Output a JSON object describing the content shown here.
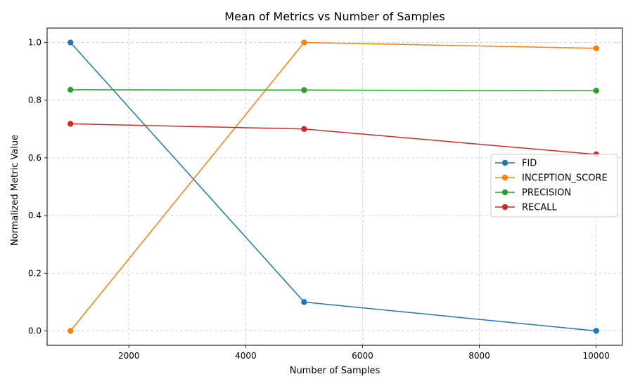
{
  "chart_data": {
    "type": "line",
    "title": "Mean of Metrics vs Number of Samples",
    "xlabel": "Number of Samples",
    "ylabel": "Normalized Metric Value",
    "xlim": [
      600,
      10450
    ],
    "ylim": [
      -0.05,
      1.05
    ],
    "xticks": [
      2000,
      4000,
      6000,
      8000,
      10000
    ],
    "yticks": [
      0.0,
      0.2,
      0.4,
      0.6,
      0.8,
      1.0
    ],
    "xtick_labels": [
      "2000",
      "4000",
      "6000",
      "8000",
      "10000"
    ],
    "ytick_labels": [
      "0.0",
      "0.2",
      "0.4",
      "0.6",
      "0.8",
      "1.0"
    ],
    "grid": true,
    "legend_position": "center-right",
    "x": [
      1000,
      5000,
      10000
    ],
    "series": [
      {
        "name": "FID",
        "color": "#1f77b4",
        "values": [
          1.0,
          0.1,
          0.0
        ]
      },
      {
        "name": "INCEPTION_SCORE",
        "color": "#ff7f0e",
        "values": [
          0.0,
          1.0,
          0.98
        ]
      },
      {
        "name": "PRECISION",
        "color": "#2ca02c",
        "values": [
          0.836,
          0.835,
          0.833
        ]
      },
      {
        "name": "RECALL",
        "color": "#d62728",
        "values": [
          0.718,
          0.7,
          0.612
        ]
      }
    ]
  }
}
